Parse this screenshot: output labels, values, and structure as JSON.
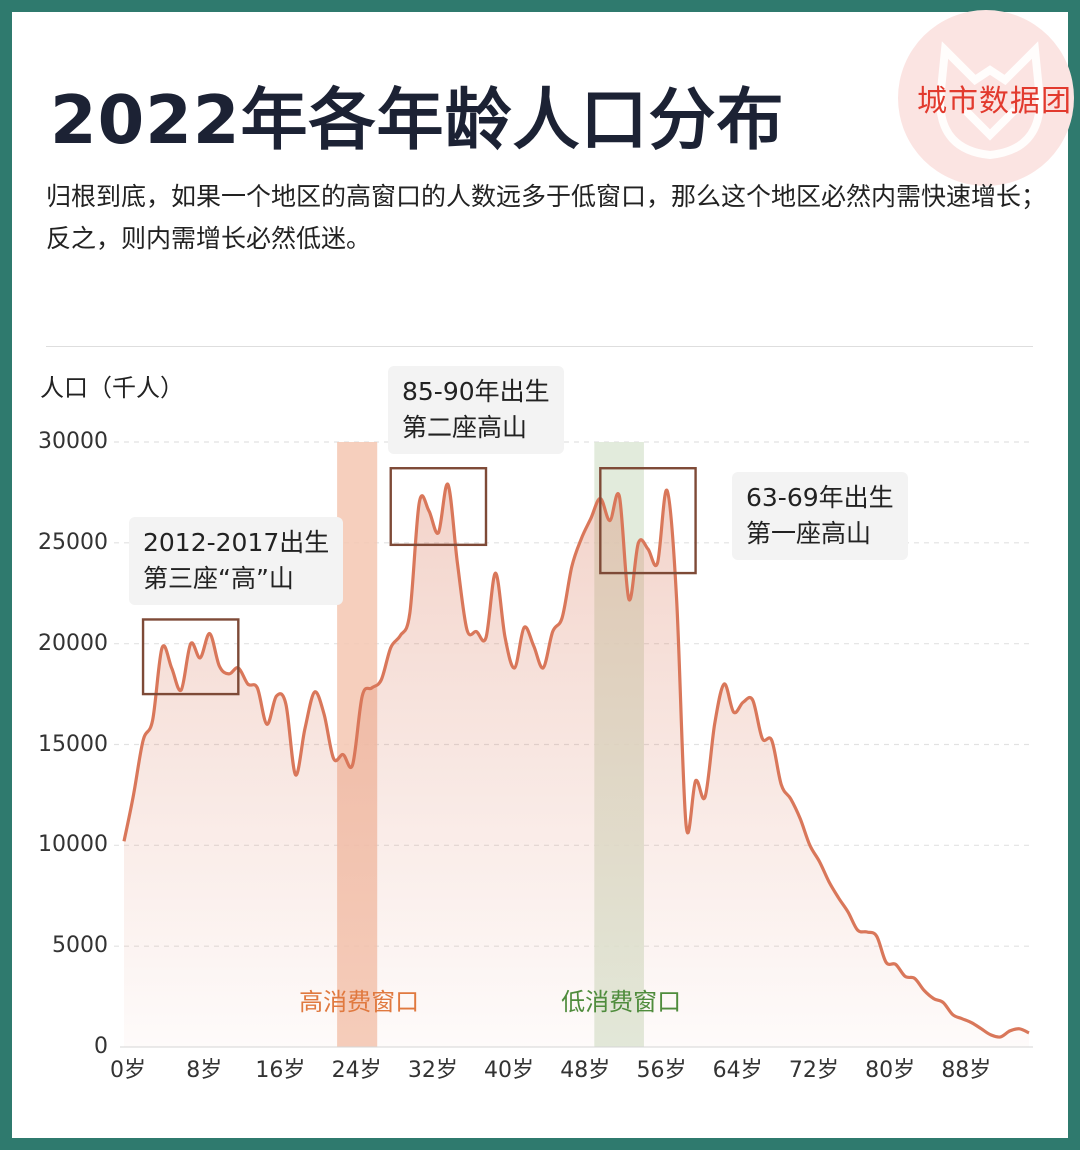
{
  "title": "2022年各年龄人口分布",
  "description": "归根到底，如果一个地区的高窗口的人数远多于低窗口，那么这个地区必然内需快速增长；反之，则内需增长必然低迷。",
  "brand": {
    "name": "城市数据团",
    "badge_color": "#fbe4e2",
    "text_color": "#e23a2e"
  },
  "chart_data": {
    "type": "area",
    "title": "2022年各年龄人口分布",
    "ylabel": "人口（千人）",
    "xlabel": "",
    "ylim": [
      0,
      30000
    ],
    "xlim": [
      0,
      95
    ],
    "yticks": [
      {
        "value": 0,
        "label": "0"
      },
      {
        "value": 5000,
        "label": "5000"
      },
      {
        "value": 10000,
        "label": "10000"
      },
      {
        "value": 15000,
        "label": "15000"
      },
      {
        "value": 20000,
        "label": "20000"
      },
      {
        "value": 25000,
        "label": "25000"
      },
      {
        "value": 30000,
        "label": "30000"
      }
    ],
    "xticks": [
      {
        "value": 0,
        "label": "0岁"
      },
      {
        "value": 8,
        "label": "8岁"
      },
      {
        "value": 16,
        "label": "16岁"
      },
      {
        "value": 24,
        "label": "24岁"
      },
      {
        "value": 32,
        "label": "32岁"
      },
      {
        "value": 40,
        "label": "40岁"
      },
      {
        "value": 48,
        "label": "48岁"
      },
      {
        "value": 56,
        "label": "56岁"
      },
      {
        "value": 64,
        "label": "64岁"
      },
      {
        "value": 72,
        "label": "72岁"
      },
      {
        "value": 80,
        "label": "80岁"
      },
      {
        "value": 88,
        "label": "88岁"
      }
    ],
    "grid": true,
    "line_color": "#d9775a",
    "series": [
      {
        "x": [
          0,
          1,
          2,
          3,
          4,
          5,
          6,
          7,
          8,
          9,
          10,
          11,
          12,
          13,
          14,
          15,
          16,
          17,
          18,
          19,
          20,
          21,
          22,
          23,
          24,
          25,
          26,
          27,
          28,
          29,
          30,
          31,
          32,
          33,
          34,
          35,
          36,
          37,
          38,
          39,
          40,
          41,
          42,
          43,
          44,
          45,
          46,
          47,
          48,
          49,
          50,
          51,
          52,
          53,
          54,
          55,
          56,
          57,
          58,
          59,
          60,
          61,
          62,
          63,
          64,
          65,
          66,
          67,
          68,
          69,
          70,
          71,
          72,
          73,
          74,
          75,
          76,
          77,
          78,
          79,
          80,
          81,
          82,
          83,
          84,
          85,
          86,
          87,
          88,
          89,
          90,
          91,
          92,
          93,
          94,
          95
        ],
        "y": [
          10200,
          12500,
          15200,
          16200,
          19800,
          18800,
          17700,
          20000,
          19300,
          20500,
          18900,
          18500,
          18800,
          18000,
          17800,
          16000,
          17400,
          17000,
          13500,
          15800,
          17600,
          16500,
          14300,
          14500,
          14000,
          17400,
          17800,
          18200,
          19800,
          20400,
          21500,
          27000,
          26600,
          25500,
          27900,
          24000,
          20700,
          20600,
          20300,
          23500,
          20300,
          18800,
          20800,
          19900,
          18800,
          20600,
          21300,
          23800,
          25200,
          26200,
          27200,
          26100,
          27300,
          22200,
          25000,
          24700,
          24000,
          27600,
          22300,
          11000,
          13200,
          12400,
          16000,
          18000,
          16600,
          17100,
          17200,
          15300,
          15200,
          13000,
          12300,
          11300,
          10000,
          9200,
          8200,
          7400,
          6700,
          5800,
          5700,
          5500,
          4200,
          4100,
          3500,
          3400,
          2800,
          2400,
          2200,
          1600,
          1400,
          1200,
          900,
          600,
          500,
          800,
          900,
          700
        ]
      }
    ],
    "windows": [
      {
        "label": "高消费窗口",
        "x0": 23,
        "x1": 27,
        "color": "#f4c7b2",
        "text_color": "#e0793f"
      },
      {
        "label": "低消费窗口",
        "x0": 50,
        "x1": 55,
        "color": "#dde8d6",
        "text_color": "#4f8c3c"
      }
    ],
    "highlights": [
      {
        "x0": 2,
        "x1": 12,
        "y0": 17500,
        "y1": 21200,
        "color": "#7e4a37"
      },
      {
        "x0": 28,
        "x1": 38,
        "y0": 24900,
        "y1": 28700,
        "color": "#7e4a37"
      },
      {
        "x0": 50,
        "x1": 60,
        "y0": 23500,
        "y1": 28700,
        "color": "#7e4a37"
      }
    ],
    "annotations": [
      {
        "line1": "2012-2017出生",
        "line2": "第三座“高”山"
      },
      {
        "line1": "85-90年出生",
        "line2": "第二座高山"
      },
      {
        "line1": "63-69年出生",
        "line2": "第一座高山"
      }
    ]
  }
}
